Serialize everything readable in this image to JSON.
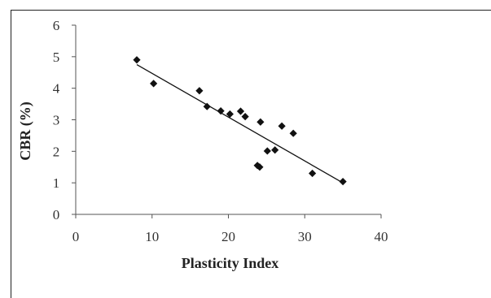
{
  "chart_data": {
    "type": "scatter",
    "title": "",
    "xlabel": "Plasticity Index",
    "ylabel": "CBR (%)",
    "xlim": [
      0,
      40
    ],
    "ylim": [
      0,
      6
    ],
    "xticks": [
      0,
      10,
      20,
      30,
      40
    ],
    "yticks": [
      0,
      1,
      2,
      3,
      4,
      5,
      6
    ],
    "grid": false,
    "legend": "none",
    "marker": "diamond",
    "marker_color": "#111111",
    "points": [
      {
        "x": 8.0,
        "y": 4.9
      },
      {
        "x": 10.2,
        "y": 4.15
      },
      {
        "x": 16.2,
        "y": 3.92
      },
      {
        "x": 17.2,
        "y": 3.42
      },
      {
        "x": 19.0,
        "y": 3.28
      },
      {
        "x": 20.2,
        "y": 3.18
      },
      {
        "x": 21.6,
        "y": 3.27
      },
      {
        "x": 22.2,
        "y": 3.1
      },
      {
        "x": 23.8,
        "y": 1.55
      },
      {
        "x": 24.1,
        "y": 1.5
      },
      {
        "x": 24.2,
        "y": 2.93
      },
      {
        "x": 25.1,
        "y": 2.01
      },
      {
        "x": 26.1,
        "y": 2.04
      },
      {
        "x": 27.0,
        "y": 2.8
      },
      {
        "x": 28.5,
        "y": 2.57
      },
      {
        "x": 31.0,
        "y": 1.3
      },
      {
        "x": 35.0,
        "y": 1.04
      }
    ],
    "trendline": {
      "type": "linear",
      "color": "#111111",
      "x": [
        8,
        35
      ],
      "y": [
        4.75,
        1.0
      ]
    }
  }
}
